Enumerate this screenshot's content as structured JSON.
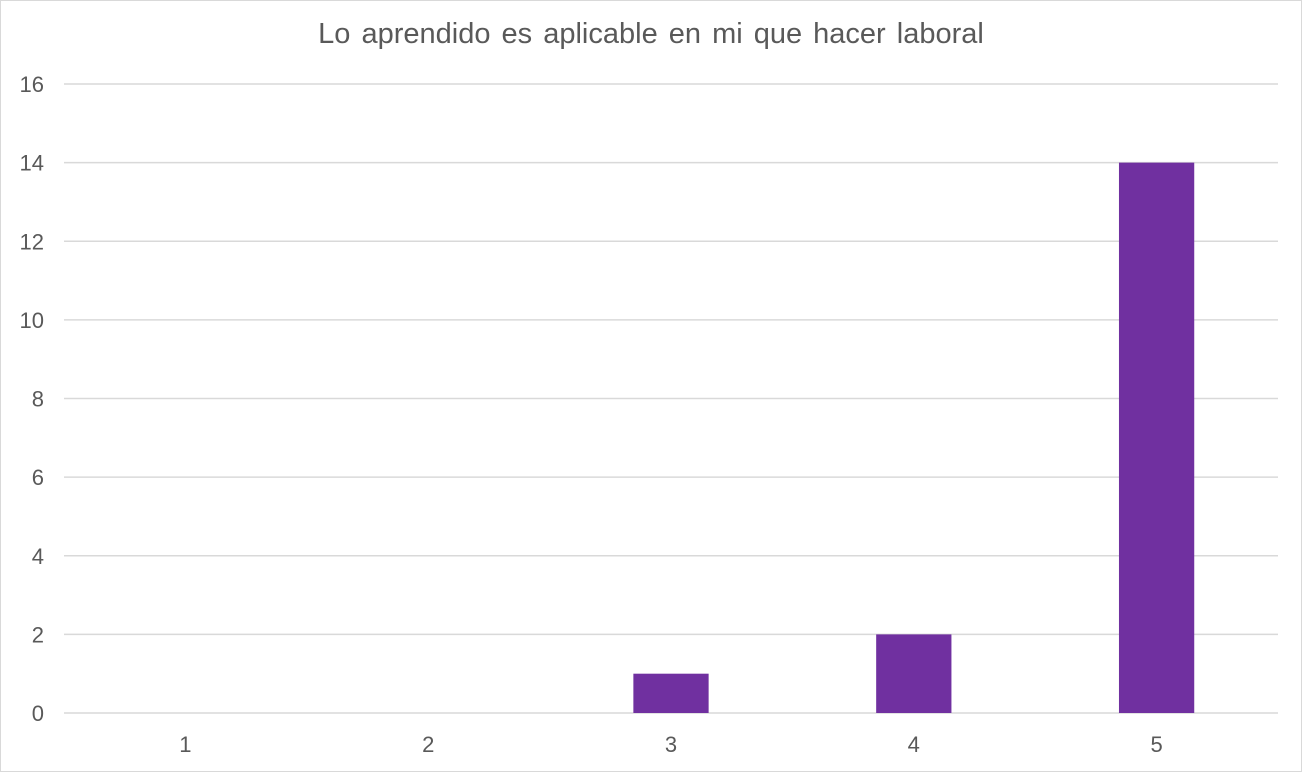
{
  "chart_data": {
    "type": "bar",
    "title": "Lo aprendido es aplicable en mi que hacer laboral",
    "xlabel": "",
    "ylabel": "",
    "categories": [
      "1",
      "2",
      "3",
      "4",
      "5"
    ],
    "values": [
      0,
      0,
      1,
      2,
      14
    ],
    "ylim": [
      0,
      16
    ],
    "yticks": [
      "0",
      "2",
      "4",
      "6",
      "8",
      "10",
      "12",
      "14",
      "16"
    ],
    "grid": true,
    "legend": "none",
    "bar_color": "#7030a0",
    "grid_color": "#d9d9d9"
  }
}
